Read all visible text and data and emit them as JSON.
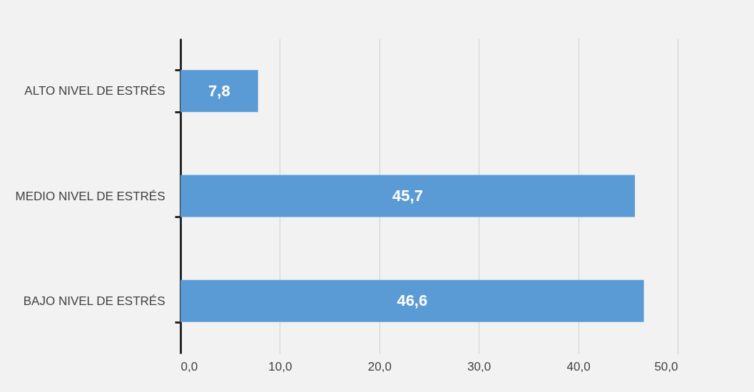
{
  "chart_data": {
    "type": "bar",
    "orientation": "horizontal",
    "categories": [
      "ALTO NIVEL DE ESTRÉS",
      "MEDIO NIVEL DE ESTRÉS",
      "BAJO NIVEL DE ESTRÉS"
    ],
    "values": [
      7.8,
      45.7,
      46.6
    ],
    "value_labels": [
      "7,8",
      "45,7",
      "46,6"
    ],
    "color": "#5b9bd5",
    "xlim": [
      0,
      50
    ],
    "xticks": [
      {
        "value": 0,
        "label": "0,0"
      },
      {
        "value": 10,
        "label": "10,0"
      },
      {
        "value": 20,
        "label": "20,0"
      },
      {
        "value": 30,
        "label": "30,0"
      },
      {
        "value": 40,
        "label": "40,0"
      },
      {
        "value": 50,
        "label": "50,0"
      }
    ],
    "grid": "x"
  }
}
